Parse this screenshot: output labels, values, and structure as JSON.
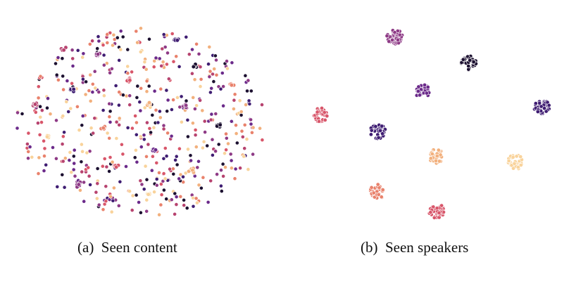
{
  "captions": {
    "a": "(a)  Seen content",
    "b": "(b)  Seen speakers"
  },
  "palette": [
    "#1c1030",
    "#3f1d72",
    "#6b2a8a",
    "#8e3a86",
    "#b7436f",
    "#d8566a",
    "#e9826c",
    "#f2b07d",
    "#f9d39b"
  ],
  "chart_data": [
    {
      "type": "scatter",
      "title": "",
      "xlabel": "",
      "ylabel": "",
      "xlim": [
        -1,
        1
      ],
      "ylim": [
        -1,
        1
      ],
      "grid": false,
      "description_of_marks": "scattered small clusters and single points, colors mixed",
      "clusters": [
        {
          "x": -0.62,
          "y": 0.78,
          "color_index": 4
        },
        {
          "x": -0.35,
          "y": 0.72,
          "color_index": 3
        },
        {
          "x": 0.28,
          "y": 0.88,
          "color_index": 1
        },
        {
          "x": 0.42,
          "y": 0.6,
          "color_index": 0
        },
        {
          "x": -0.1,
          "y": 0.45,
          "color_index": 5
        },
        {
          "x": -0.55,
          "y": 0.35,
          "color_index": 1
        },
        {
          "x": 0.05,
          "y": 0.2,
          "color_index": 7
        },
        {
          "x": 0.35,
          "y": 0.18,
          "color_index": 3
        },
        {
          "x": -0.3,
          "y": -0.05,
          "color_index": 6
        },
        {
          "x": 0.62,
          "y": -0.02,
          "color_index": 0
        },
        {
          "x": -0.75,
          "y": -0.15,
          "color_index": 8
        },
        {
          "x": 0.1,
          "y": -0.28,
          "color_index": 2
        },
        {
          "x": -0.2,
          "y": -0.45,
          "color_index": 5
        },
        {
          "x": 0.4,
          "y": -0.5,
          "color_index": 7
        },
        {
          "x": -0.5,
          "y": -0.65,
          "color_index": 3
        },
        {
          "x": 0.05,
          "y": -0.75,
          "color_index": 8
        },
        {
          "x": 0.72,
          "y": 0.4,
          "color_index": 6
        },
        {
          "x": -0.85,
          "y": 0.2,
          "color_index": 4
        }
      ]
    },
    {
      "type": "scatter",
      "title": "",
      "xlabel": "",
      "ylabel": "",
      "xlim": [
        -1,
        1
      ],
      "ylim": [
        -1,
        1
      ],
      "grid": false,
      "clusters": [
        {
          "name": "",
          "x": -0.28,
          "y": 0.93,
          "color_index": 3
        },
        {
          "name": "",
          "x": 0.34,
          "y": 0.65,
          "color_index": 0
        },
        {
          "name": "",
          "x": -0.05,
          "y": 0.34,
          "color_index": 2
        },
        {
          "name": "",
          "x": 0.95,
          "y": 0.17,
          "color_index": 1
        },
        {
          "name": "",
          "x": -0.9,
          "y": 0.09,
          "color_index": 5
        },
        {
          "name": "",
          "x": -0.42,
          "y": -0.09,
          "color_index": 1
        },
        {
          "name": "",
          "x": 0.07,
          "y": -0.36,
          "color_index": 7
        },
        {
          "name": "",
          "x": 0.73,
          "y": -0.42,
          "color_index": 8
        },
        {
          "name": "",
          "x": -0.42,
          "y": -0.74,
          "color_index": 6
        },
        {
          "name": "",
          "x": 0.07,
          "y": -0.95,
          "color_index": 5
        }
      ]
    }
  ]
}
